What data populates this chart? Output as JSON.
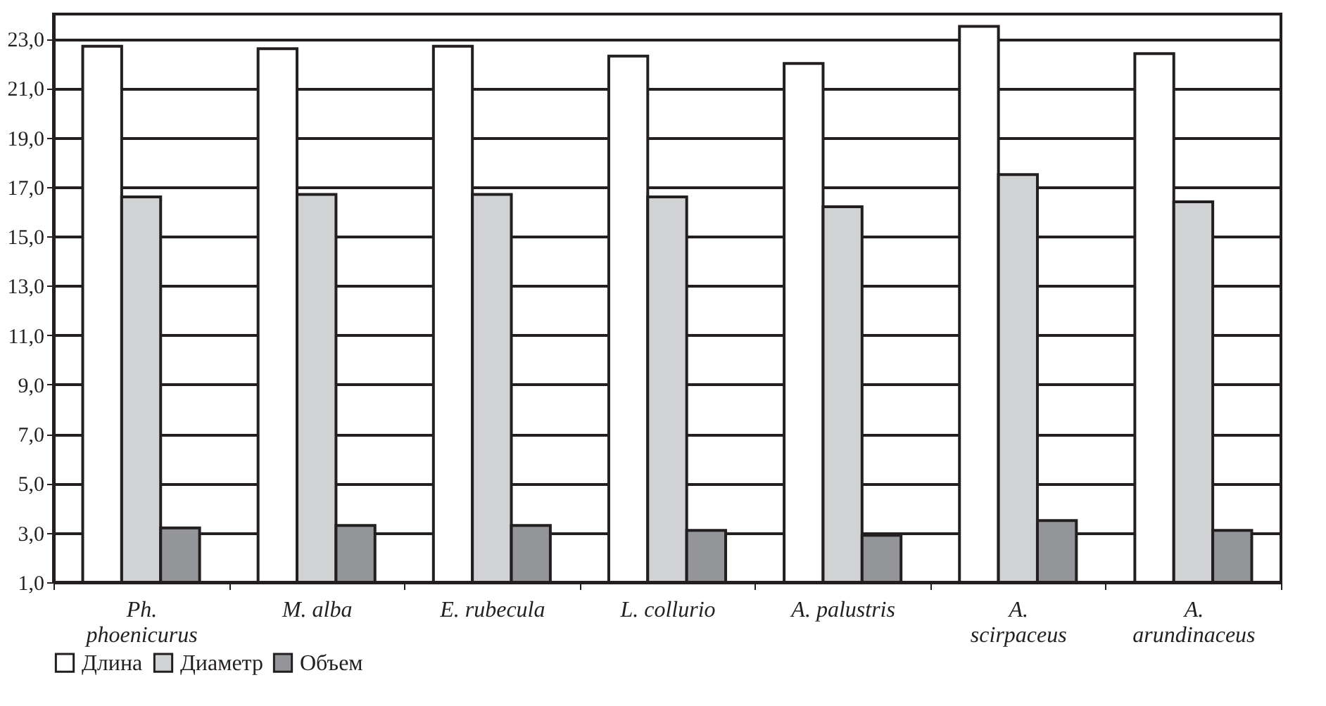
{
  "chart_data": {
    "type": "bar",
    "categories": [
      "Ph. phoenicurus",
      "M. alba",
      "E. rubecula",
      "L. collurio",
      "A. palustris",
      "A. scirpaceus",
      "A. arundinaceus"
    ],
    "series": [
      {
        "name": "Длина",
        "color": "#ffffff",
        "values": [
          22.7,
          22.6,
          22.7,
          22.3,
          22.0,
          23.5,
          22.4
        ]
      },
      {
        "name": "Диаметр",
        "color": "#d1d2d4",
        "values": [
          16.6,
          16.7,
          16.7,
          16.6,
          16.2,
          17.5,
          16.4
        ]
      },
      {
        "name": "Объем",
        "color": "#939598",
        "values": [
          3.2,
          3.3,
          3.3,
          3.1,
          2.9,
          3.5,
          3.1
        ]
      }
    ],
    "ylim": [
      1,
      24
    ],
    "yticks": [
      {
        "value": 1,
        "label": "1,0"
      },
      {
        "value": 3,
        "label": "3,0"
      },
      {
        "value": 5,
        "label": "5,0"
      },
      {
        "value": 7,
        "label": "7,0"
      },
      {
        "value": 9,
        "label": "9,0"
      },
      {
        "value": 11,
        "label": "11,0"
      },
      {
        "value": 13,
        "label": "13,0"
      },
      {
        "value": 15,
        "label": "15,0"
      },
      {
        "value": 17,
        "label": "17,0"
      },
      {
        "value": 19,
        "label": "19,0"
      },
      {
        "value": 21,
        "label": "21,0"
      },
      {
        "value": 23,
        "label": "23,0"
      }
    ],
    "grid": "y",
    "legend": "bottom"
  }
}
